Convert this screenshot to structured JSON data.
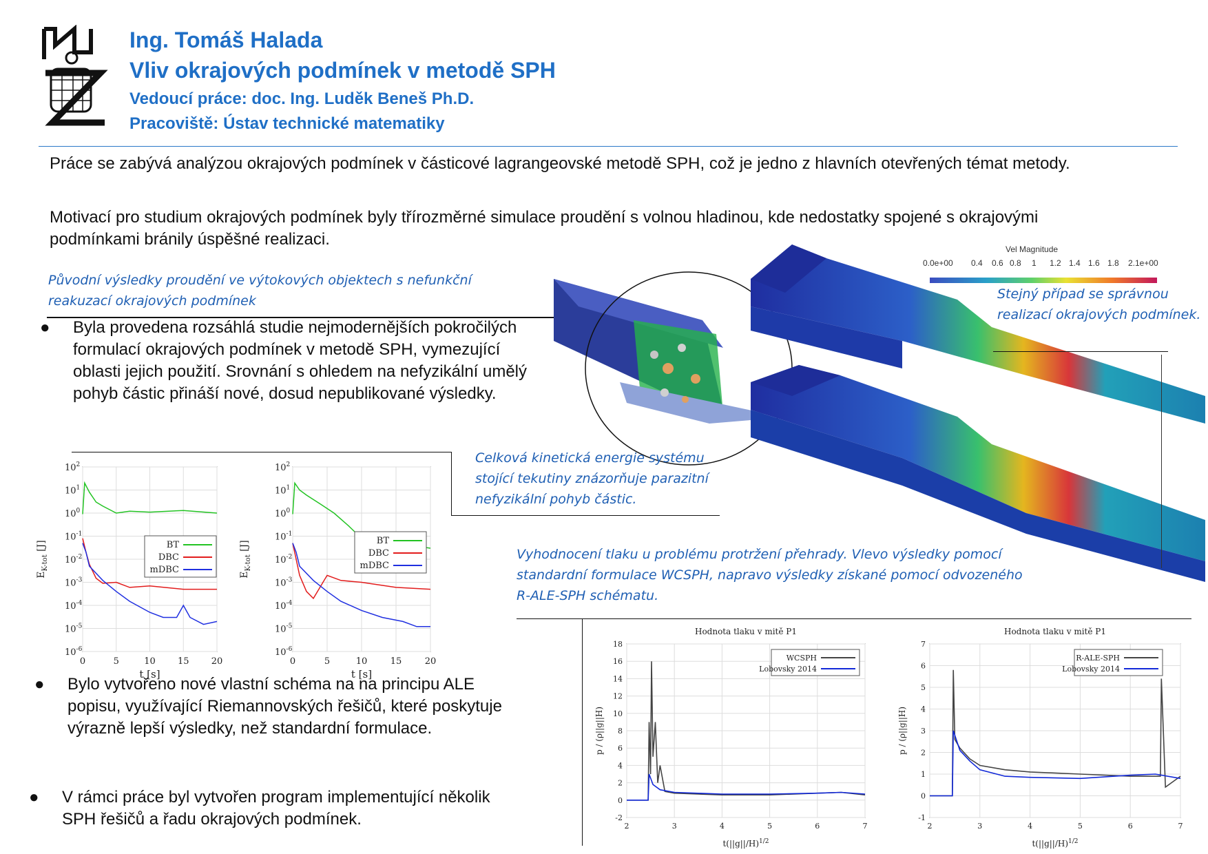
{
  "header": {
    "author": "Ing. Tomáš Halada",
    "title": "Vliv okrajových podmínek v metodě SPH",
    "supervisor": "Vedoucí práce:  doc. Ing. Luděk Beneš Ph.D.",
    "department": "Pracoviště: Ústav technické matematiky"
  },
  "intro": {
    "p1": "Práce se zabývá analýzou okrajových podmínek v částicové lagrangeovské metodě SPH, což je jedno z hlavních otevřených témat metody.",
    "p2": "Motivací pro studium okrajových podmínek byly třírozměrné simulace proudění s volnou hladinou, kde nedostatky spojené s okrajovými podmínkami bránily úspěšné realizaci."
  },
  "captions": {
    "original": "Původní výsledky proudění ve výtokových objektech s nefunkční reakuzací okrajových podmínek",
    "correct": "Stejný případ se správnou realizací okrajových podmínek.",
    "kinetic": "Celková kinetická energie systému stojící tekutiny znázorňuje parazitní nefyzikální pohyb částic.",
    "pressure": "Vyhodnocení tlaku u problému protržení přehrady. Vlevo výsledky pomocí standardní formulace WCSPH, napravo výsledky získané pomocí odvozeného R-ALE-SPH schématu."
  },
  "bullets": [
    "Byla provedena rozsáhlá studie nejmodernějších pokročilých formulací okrajových podmínek v metodě SPH, vymezující oblasti jejich použití. Srovnání s ohledem na nefyzikální umělý pohyb částic přináší nové, dosud nepublikované výsledky.",
    "Bylo vytvořeno nové vlastní schéma na na principu ALE popisu, využívající Riemannovských řešičů, které poskytuje výrazně lepší výsledky, než standardní formulace.",
    "V rámci práce byl vytvořen program implementující několik SPH řešičů a řadu okrajových podmínek."
  ],
  "colorbar": {
    "title": "Vel Magnitude",
    "ticks": [
      "0.0e+00",
      "0.4",
      "0.6",
      "0.8",
      "1",
      "1.2",
      "1.4",
      "1.6",
      "1.8",
      "2.1e+00"
    ]
  },
  "colors": {
    "heading": "#1f6fc6",
    "caption": "#1f5fb3"
  },
  "chart_data": [
    {
      "type": "line",
      "xlabel": "t [s]",
      "ylabel": "E_K-tot [J]",
      "ylabel_main": "E",
      "ylabel_sub": "K-tot",
      "ylabel_unit": " [J]",
      "yscale": "log",
      "xlim": [
        0,
        20
      ],
      "ylim": [
        1e-06,
        100
      ],
      "xticks": [
        "0",
        "5",
        "10",
        "15",
        "20"
      ],
      "yticks_exp": [
        "2",
        "1",
        "0",
        "-1",
        "-2",
        "-3",
        "-4",
        "-5",
        "-6"
      ],
      "legend": "right",
      "series": [
        {
          "name": "BT",
          "color": "#22c322",
          "x": [
            0,
            0.3,
            1,
            2,
            3,
            5,
            7,
            10,
            15,
            20
          ],
          "y": [
            0.9,
            20,
            8,
            3,
            2,
            1,
            1.2,
            1.1,
            1.3,
            1.0
          ]
        },
        {
          "name": "DBC",
          "color": "#e21b1b",
          "x": [
            0,
            0.5,
            1,
            2,
            3,
            5,
            7,
            10,
            15,
            20
          ],
          "y": [
            0.08,
            0.02,
            0.006,
            0.0015,
            0.0009,
            0.001,
            0.0006,
            0.0007,
            0.0005,
            0.0005
          ]
        },
        {
          "name": "mDBC",
          "color": "#1f2fe0",
          "x": [
            0,
            0.5,
            1,
            3,
            5,
            7,
            10,
            12,
            14,
            15,
            16,
            18,
            20
          ],
          "y": [
            0.05,
            0.02,
            0.005,
            0.0012,
            0.0004,
            0.00015,
            5e-05,
            3e-05,
            3e-05,
            0.0001,
            3e-05,
            1.5e-05,
            2e-05
          ]
        }
      ]
    },
    {
      "type": "line",
      "xlabel": "t [s]",
      "ylabel": "E_K-tot [J]",
      "ylabel_main": "E",
      "ylabel_sub": "K-tot",
      "ylabel_unit": " [J]",
      "yscale": "log",
      "xlim": [
        0,
        20
      ],
      "ylim": [
        1e-06,
        100
      ],
      "xticks": [
        "0",
        "5",
        "10",
        "15",
        "20"
      ],
      "yticks_exp": [
        "2",
        "1",
        "0",
        "-1",
        "-2",
        "-3",
        "-4",
        "-5",
        "-6"
      ],
      "legend": "right",
      "series": [
        {
          "name": "BT",
          "color": "#22c322",
          "x": [
            0,
            0.3,
            1,
            2,
            4,
            6,
            8,
            10,
            15,
            20
          ],
          "y": [
            0.9,
            20,
            10,
            6,
            2.5,
            1,
            0.3,
            0.08,
            0.05,
            0.03
          ]
        },
        {
          "name": "DBC",
          "color": "#e21b1b",
          "x": [
            0,
            0.5,
            1,
            2,
            3,
            5,
            7,
            10,
            15,
            20
          ],
          "y": [
            0.05,
            0.01,
            0.002,
            0.0004,
            0.0002,
            0.002,
            0.0012,
            0.001,
            0.0006,
            0.0005
          ]
        },
        {
          "name": "mDBC",
          "color": "#1f2fe0",
          "x": [
            0,
            0.5,
            1,
            3,
            5,
            7,
            10,
            13,
            16,
            18,
            20
          ],
          "y": [
            0.05,
            0.02,
            0.005,
            0.0012,
            0.0004,
            0.00015,
            6e-05,
            3e-05,
            2e-05,
            1.2e-05,
            1.2e-05
          ]
        }
      ]
    },
    {
      "type": "line",
      "title": "Hodnota tlaku v mitě P1",
      "xlabel": "t(||g||/H)^1/2",
      "ylabel": "p / (ρ||g||H)",
      "xlim": [
        2,
        7
      ],
      "ylim": [
        -2,
        18
      ],
      "xticks": [
        "2",
        "3",
        "4",
        "5",
        "6",
        "7"
      ],
      "yticks": [
        "18",
        "16",
        "14",
        "12",
        "10",
        "8",
        "6",
        "4",
        "2",
        "0",
        "-2"
      ],
      "legend": "top-right",
      "series": [
        {
          "name": "WCSPH",
          "color": "#444444",
          "x": [
            2,
            2.45,
            2.47,
            2.5,
            2.52,
            2.55,
            2.6,
            2.65,
            2.7,
            2.8,
            3,
            4,
            5,
            6,
            6.5,
            7
          ],
          "y": [
            0,
            0,
            9,
            3,
            16,
            5,
            9,
            2,
            4,
            1,
            0.8,
            0.6,
            0.6,
            0.8,
            0.9,
            0.6
          ]
        },
        {
          "name": "Lobovsky 2014",
          "color": "#1128d8",
          "x": [
            2,
            2.45,
            2.47,
            2.55,
            2.7,
            3,
            4,
            5,
            6,
            6.5,
            7
          ],
          "y": [
            0,
            0,
            3,
            1.8,
            1.2,
            0.9,
            0.7,
            0.7,
            0.8,
            0.9,
            0.7
          ]
        }
      ]
    },
    {
      "type": "line",
      "title": "Hodnota tlaku v mitě P1",
      "xlabel": "t(||g||/H)^1/2",
      "ylabel": "p / (ρ||g||H)",
      "xlim": [
        2,
        7
      ],
      "ylim": [
        -1,
        7
      ],
      "xticks": [
        "2",
        "3",
        "4",
        "5",
        "6",
        "7"
      ],
      "yticks": [
        "7",
        "6",
        "5",
        "4",
        "3",
        "2",
        "1",
        "0",
        "-1"
      ],
      "legend": "top-right",
      "series": [
        {
          "name": "R-ALE-SPH",
          "color": "#444444",
          "x": [
            2,
            2.45,
            2.47,
            2.5,
            2.6,
            2.8,
            3,
            3.5,
            4,
            5,
            6,
            6.6,
            6.62,
            6.7,
            7
          ],
          "y": [
            0,
            0,
            5.8,
            2.6,
            2.2,
            1.7,
            1.4,
            1.2,
            1.1,
            1,
            0.9,
            0.9,
            5.4,
            0.4,
            0.9
          ]
        },
        {
          "name": "Lobovsky 2014",
          "color": "#1128d8",
          "x": [
            2,
            2.45,
            2.47,
            2.6,
            2.8,
            3,
            3.5,
            4,
            5,
            6,
            6.5,
            7
          ],
          "y": [
            0,
            0,
            3.0,
            2.1,
            1.6,
            1.2,
            0.9,
            0.85,
            0.8,
            0.95,
            1.0,
            0.8
          ]
        }
      ]
    }
  ]
}
